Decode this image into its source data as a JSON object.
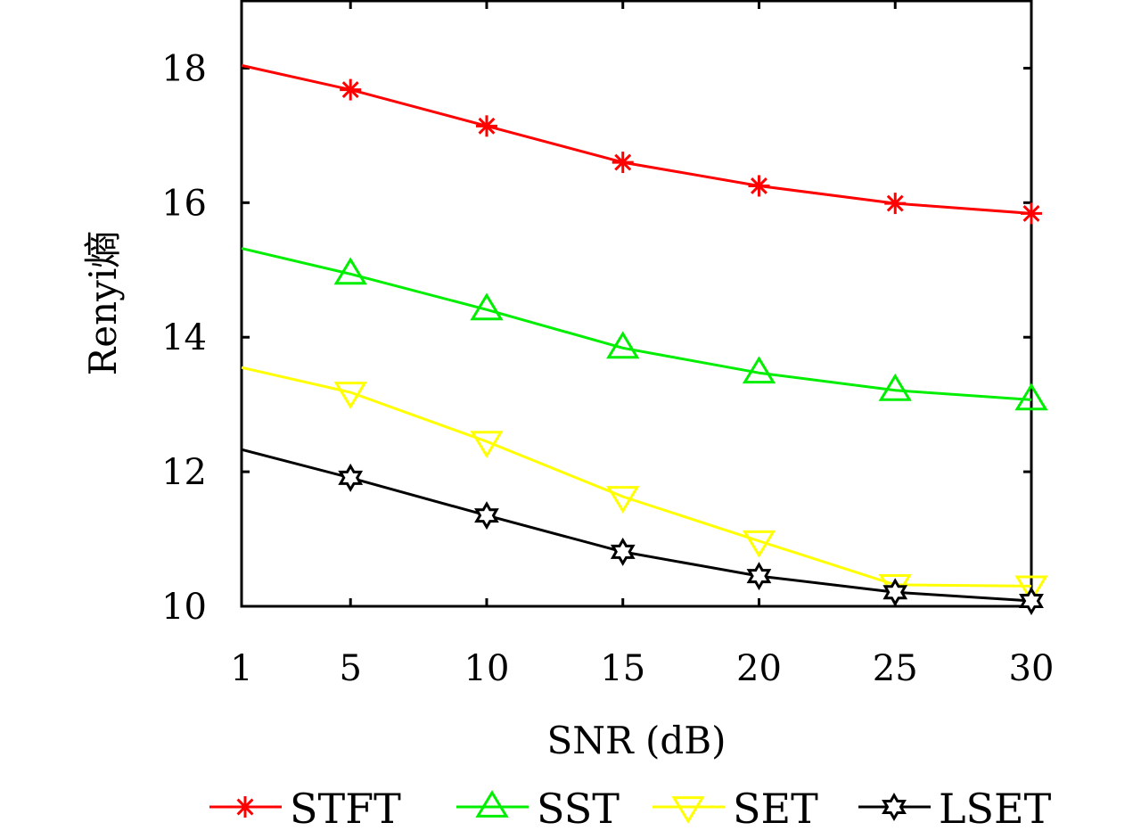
{
  "chart_data": {
    "type": "line",
    "title": "",
    "xlabel": "SNR (dB)",
    "ylabel": "Renyi熵",
    "x": [
      1,
      5,
      10,
      15,
      20,
      25,
      30
    ],
    "xlim": [
      1,
      30
    ],
    "ylim": [
      10,
      19
    ],
    "xticks": [
      1,
      5,
      10,
      15,
      20,
      25,
      30
    ],
    "xtick_labels": [
      "1",
      "5",
      "10",
      "15",
      "20",
      "25",
      "30"
    ],
    "yticks": [
      10,
      12,
      14,
      16,
      18
    ],
    "ytick_labels": [
      "10",
      "12",
      "14",
      "16",
      "18"
    ],
    "grid": false,
    "box": true,
    "legend_position": "bottom-outside",
    "series": [
      {
        "name": "STFT",
        "color": "#ff0000",
        "marker": "asterisk",
        "values": [
          18.04,
          17.68,
          17.14,
          16.6,
          16.25,
          15.99,
          15.84
        ]
      },
      {
        "name": "SST",
        "color": "#00ee00",
        "marker": "triangle-up",
        "values": [
          15.32,
          14.94,
          14.41,
          13.84,
          13.47,
          13.21,
          13.07
        ]
      },
      {
        "name": "SET",
        "color": "#ffff00",
        "marker": "triangle-down",
        "values": [
          13.55,
          13.18,
          12.45,
          11.63,
          10.97,
          10.32,
          10.3
        ]
      },
      {
        "name": "LSET",
        "color": "#000000",
        "marker": "hexagram",
        "values": [
          12.33,
          11.91,
          11.35,
          10.81,
          10.45,
          10.21,
          10.08
        ]
      }
    ]
  }
}
